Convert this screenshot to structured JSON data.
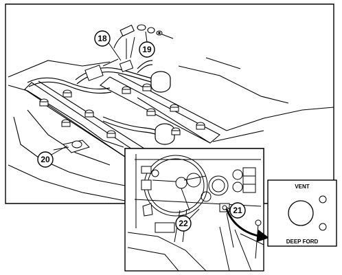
{
  "callouts": {
    "c18": "18",
    "c19": "19",
    "c20": "20",
    "c21": "21",
    "c22": "22"
  },
  "plate": {
    "top_label": "VENT",
    "bottom_label": "DEEP FORD"
  }
}
